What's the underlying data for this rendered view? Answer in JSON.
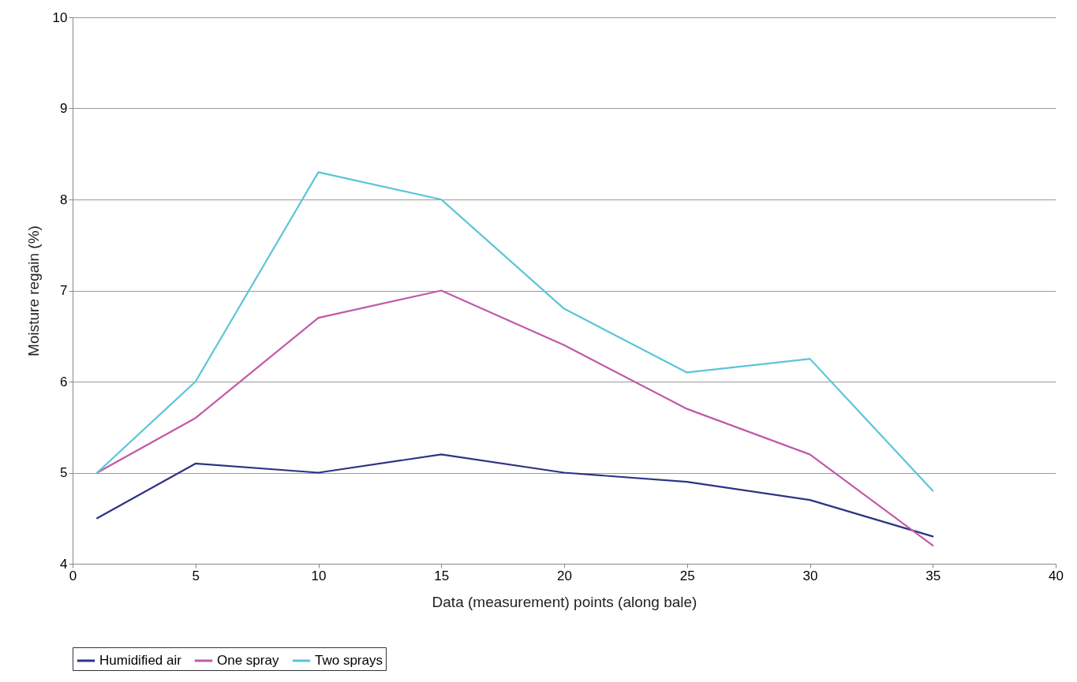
{
  "chart_data": {
    "type": "line",
    "xlabel": "Data (measurement) points (along bale)",
    "ylabel": "Moisture regain (%)",
    "x": [
      1,
      5,
      10,
      15,
      20,
      25,
      30,
      35
    ],
    "series": [
      {
        "name": "Humidified air",
        "color": "#2e3383",
        "values": [
          4.5,
          5.1,
          5.0,
          5.2,
          5.0,
          4.9,
          4.7,
          4.3
        ]
      },
      {
        "name": "One spray",
        "color": "#c05aa8",
        "values": [
          5.0,
          5.6,
          6.7,
          7.0,
          6.4,
          5.7,
          5.2,
          4.2
        ]
      },
      {
        "name": "Two sprays",
        "color": "#5bc5d8",
        "values": [
          5.0,
          6.0,
          8.3,
          8.0,
          6.8,
          6.1,
          6.25,
          4.8
        ]
      }
    ],
    "xlim": [
      0,
      40
    ],
    "xticks": [
      0,
      5,
      10,
      15,
      20,
      25,
      30,
      35,
      40
    ],
    "ylim": [
      4,
      10
    ],
    "yticks": [
      4,
      5,
      6,
      7,
      8,
      9,
      10
    ],
    "grid": "y",
    "legend": "bottom",
    "marker": "none",
    "line_style": "solid"
  }
}
